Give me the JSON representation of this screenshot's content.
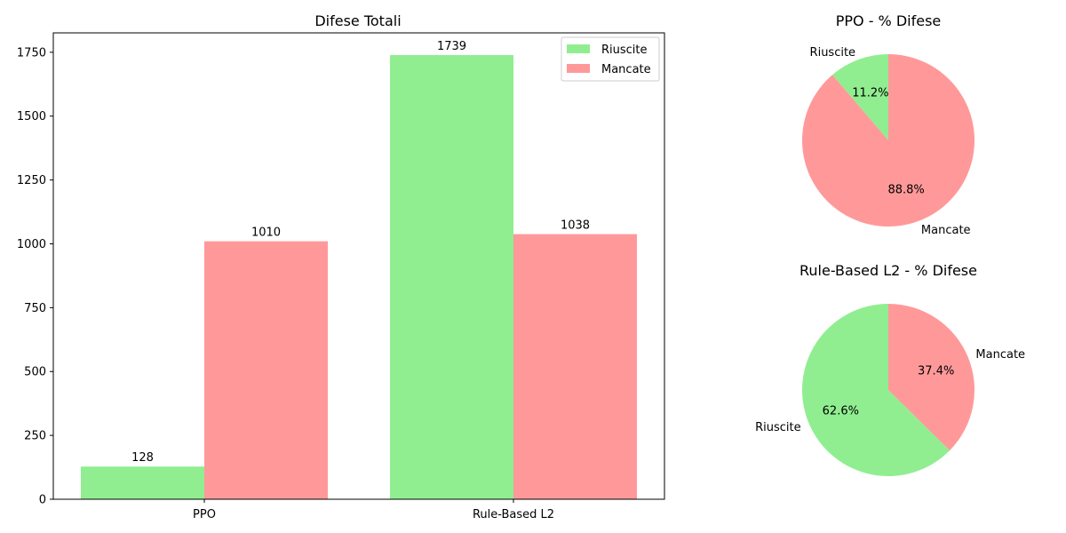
{
  "chart_data": [
    {
      "type": "bar",
      "title": "Difese Totali",
      "categories": [
        "PPO",
        "Rule-Based L2"
      ],
      "series": [
        {
          "name": "Riuscite",
          "values": [
            128,
            1739
          ],
          "color": "#90ee90"
        },
        {
          "name": "Mancate",
          "values": [
            1010,
            1038
          ],
          "color": "#ff9999"
        }
      ],
      "xlabel": "",
      "ylabel": "",
      "ylim": [
        0,
        1826
      ],
      "yticks": [
        0,
        250,
        500,
        750,
        1000,
        1250,
        1500,
        1750
      ],
      "grid": false,
      "legend": "top-right"
    },
    {
      "type": "pie",
      "title": "PPO - % Difese",
      "labels": [
        "Riuscite",
        "Mancate"
      ],
      "values": [
        128,
        1010
      ],
      "percent_labels": [
        "11.2%",
        "88.8%"
      ],
      "colors": [
        "#90ee90",
        "#ff9999"
      ]
    },
    {
      "type": "pie",
      "title": "Rule-Based L2 - % Difese",
      "labels": [
        "Riuscite",
        "Mancate"
      ],
      "values": [
        1739,
        1038
      ],
      "percent_labels": [
        "62.6%",
        "37.4%"
      ],
      "colors": [
        "#90ee90",
        "#ff9999"
      ]
    }
  ]
}
